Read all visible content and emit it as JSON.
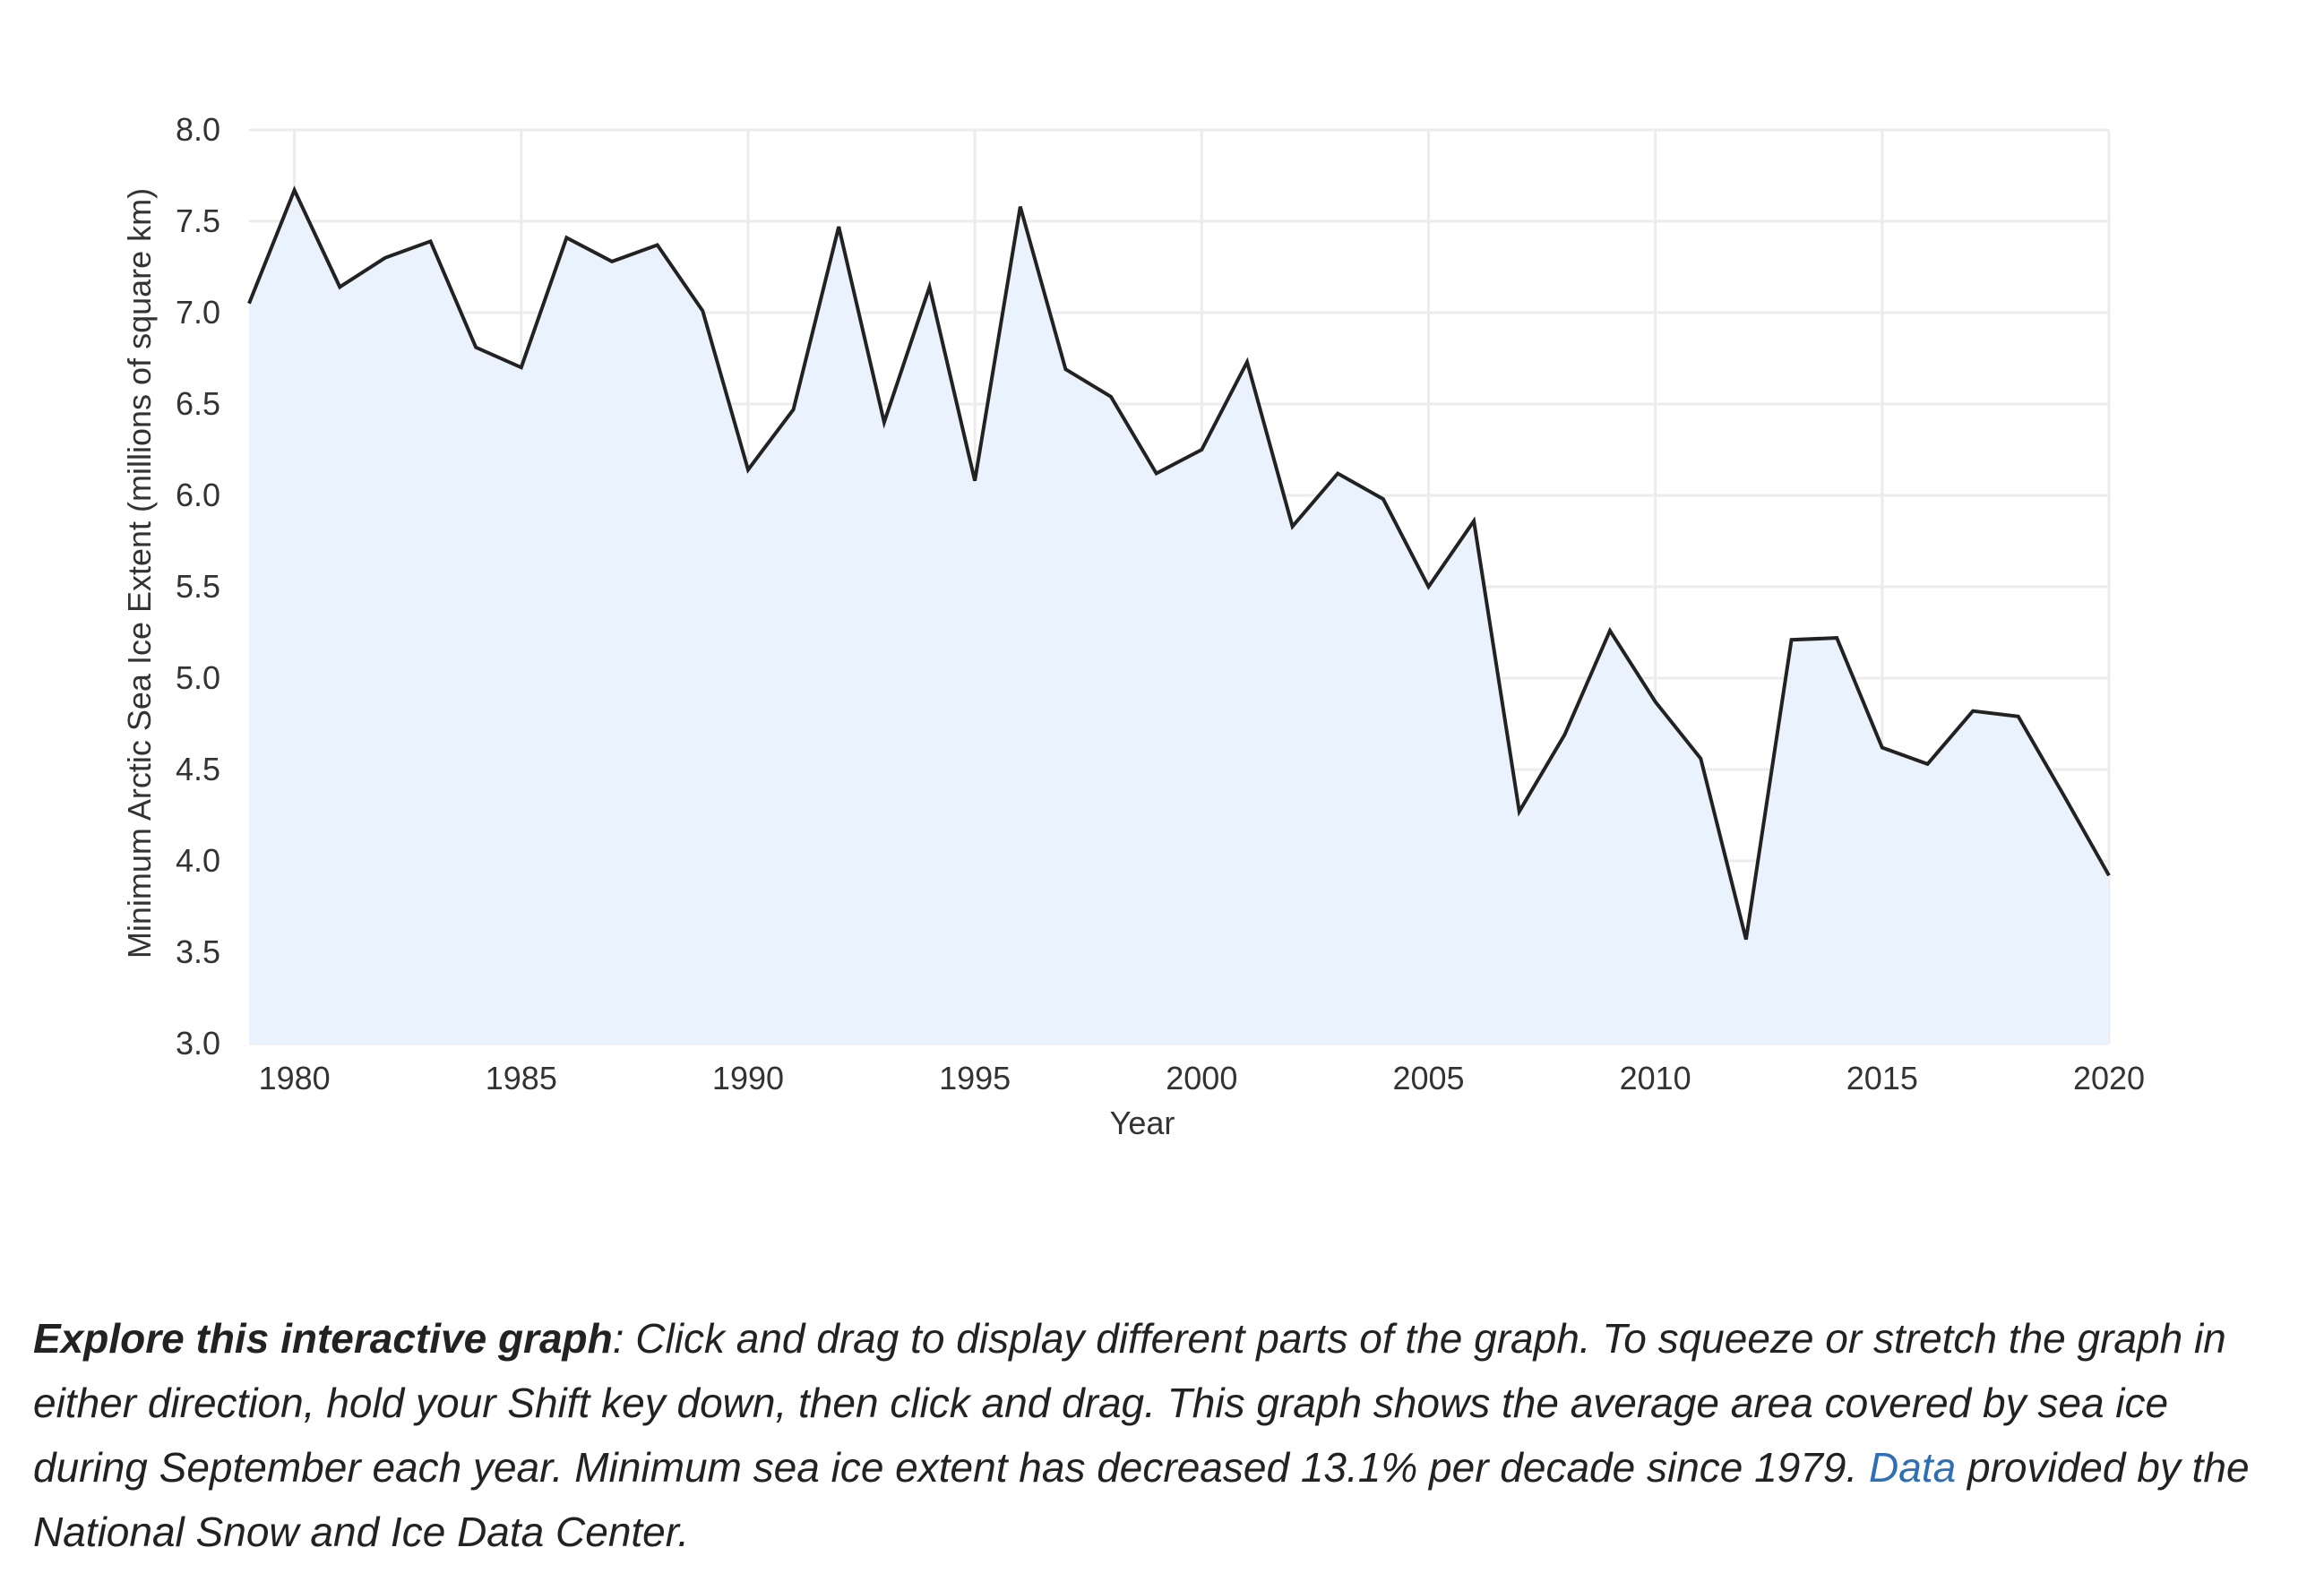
{
  "chart_data": {
    "type": "area",
    "xlabel": "Year",
    "ylabel": "Minimum Arctic Sea Ice Extent (millions of square km)",
    "xlim": [
      1979,
      2020
    ],
    "ylim": [
      3.0,
      8.0
    ],
    "x_ticks": [
      1980,
      1985,
      1990,
      1995,
      2000,
      2005,
      2010,
      2015,
      2020
    ],
    "y_ticks": [
      "3.0",
      "3.5",
      "4.0",
      "4.5",
      "5.0",
      "5.5",
      "6.0",
      "6.5",
      "7.0",
      "7.5",
      "8.0"
    ],
    "grid": true,
    "x": [
      1979,
      1980,
      1981,
      1982,
      1983,
      1984,
      1985,
      1986,
      1987,
      1988,
      1989,
      1990,
      1991,
      1992,
      1993,
      1994,
      1995,
      1996,
      1997,
      1998,
      1999,
      2000,
      2001,
      2002,
      2003,
      2004,
      2005,
      2006,
      2007,
      2008,
      2009,
      2010,
      2011,
      2012,
      2013,
      2014,
      2015,
      2016,
      2017,
      2018,
      2019,
      2020
    ],
    "values": [
      7.05,
      7.67,
      7.14,
      7.3,
      7.39,
      6.81,
      6.7,
      7.41,
      7.28,
      7.37,
      7.01,
      6.14,
      6.47,
      7.47,
      6.4,
      7.14,
      6.08,
      7.58,
      6.69,
      6.54,
      6.12,
      6.25,
      6.73,
      5.83,
      6.12,
      5.98,
      5.5,
      5.86,
      4.27,
      4.69,
      5.26,
      4.87,
      4.56,
      3.57,
      5.21,
      5.22,
      4.62,
      4.53,
      4.82,
      4.79,
      4.36,
      3.92
    ],
    "line_color": "#222222",
    "fill_color": "#eaf2fd"
  },
  "caption": {
    "lead": "Explore this interactive graph",
    "body": ": Click and drag to display different parts of the graph. To squeeze or stretch the graph in either direction, hold your Shift key down, then click and drag. This graph shows the average area covered by sea ice during September each year. Minimum sea ice extent has decreased 13.1% per decade since 1979. ",
    "link": "Data",
    "tail": " provided by the National Snow and Ice Data Center."
  }
}
